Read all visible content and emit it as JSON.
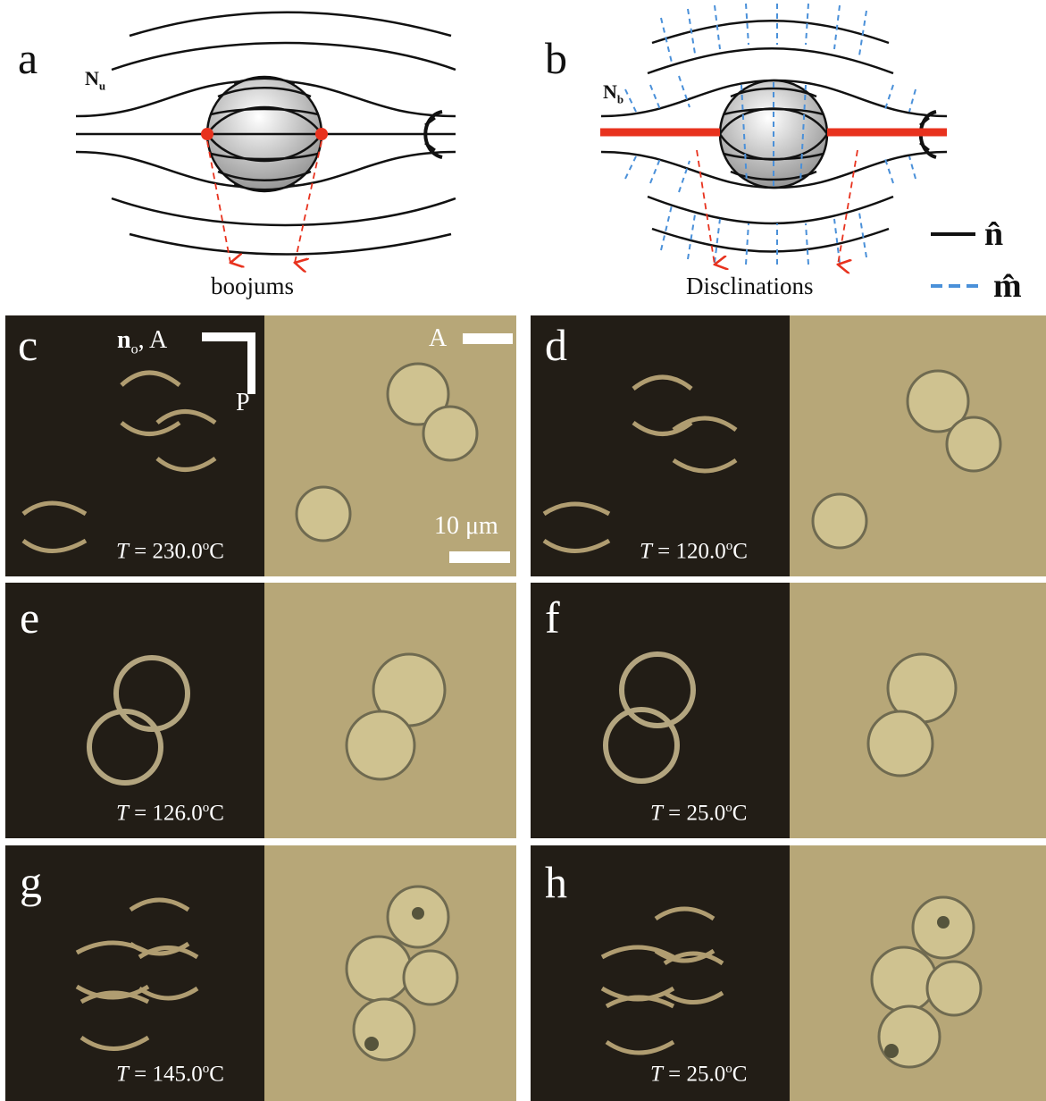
{
  "panels": {
    "a": "a",
    "b": "b",
    "c": "c",
    "d": "d",
    "e": "e",
    "f": "f",
    "g": "g",
    "h": "h"
  },
  "schematic_a": {
    "label": "N",
    "label_sub": "u",
    "caption": "boojums"
  },
  "schematic_b": {
    "label": "N",
    "label_sub": "b",
    "caption": "Disclinations"
  },
  "legend": {
    "n_symbol": "n̂",
    "m_symbol": "m̂",
    "n_color": "#111111",
    "m_color": "#4a90d9"
  },
  "overlay": {
    "pol_label_bold": "n",
    "pol_label_sub": "o",
    "pol_label_rest": ", A",
    "pol_p": "P",
    "bf_a": "A",
    "scale": "10 μm"
  },
  "temps": {
    "c": "230.0",
    "d": "120.0",
    "e": "126.0",
    "f": "25.0",
    "g": "145.0",
    "h": "25.0"
  },
  "temp_prefix": "T",
  "temp_eq": " = ",
  "temp_deg": "o",
  "temp_unit": "C",
  "colors": {
    "defect_red": "#e8321e",
    "dark_bg": "#221d16",
    "bright_bg": "#b7a778"
  }
}
